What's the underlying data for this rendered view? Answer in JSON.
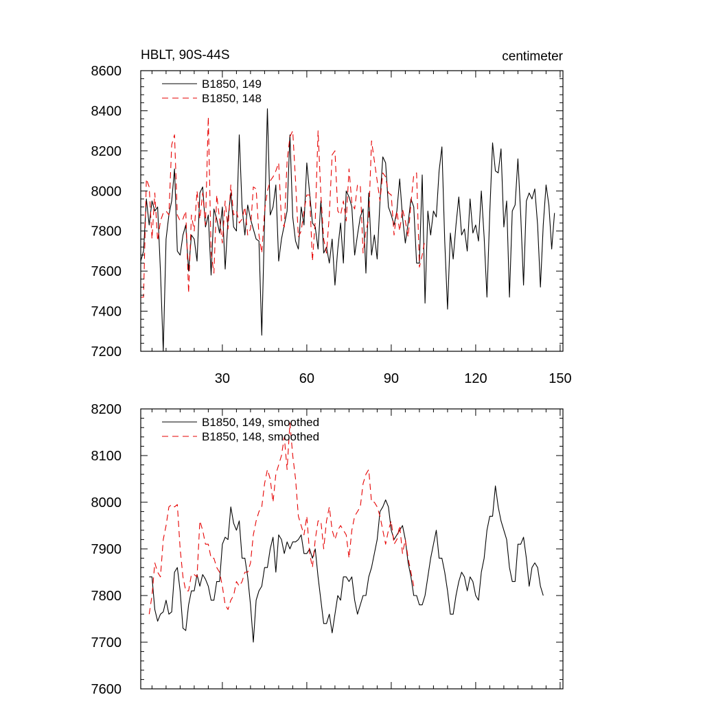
{
  "chart_data": [
    {
      "type": "line",
      "title_left": "HBLT, 90S-44S",
      "title_right": "centimeter",
      "xlim": [
        1,
        151
      ],
      "ylim": [
        7200,
        8600
      ],
      "xticks": [
        30,
        60,
        90,
        120,
        150
      ],
      "yticks": [
        7200,
        7400,
        7600,
        7800,
        8000,
        8200,
        8400,
        8600
      ],
      "show_x_tick_labels": true,
      "x_start": 1,
      "series": [
        {
          "name": "B1850, 149",
          "color": "#000000",
          "dash": "",
          "values": [
            7650,
            7700,
            7960,
            7830,
            7950,
            7900,
            7920,
            7600,
            7200,
            7760,
            7880,
            7950,
            8110,
            7700,
            7680,
            7780,
            7830,
            7600,
            7780,
            7760,
            7650,
            7990,
            8020,
            7820,
            7880,
            7580,
            7910,
            7860,
            7790,
            7920,
            7610,
            7860,
            7990,
            7820,
            7800,
            8280,
            7920,
            7780,
            7930,
            7860,
            7810,
            7760,
            7750,
            7280,
            7850,
            8410,
            7880,
            7920,
            8030,
            7650,
            7760,
            7830,
            7900,
            8280,
            7870,
            7750,
            7710,
            7920,
            7830,
            8140,
            7990,
            7840,
            7820,
            7710,
            7950,
            7690,
            7720,
            7640,
            7760,
            7530,
            7710,
            7840,
            7640,
            8000,
            7970,
            7920,
            7680,
            7780,
            7870,
            7910,
            7590,
            7990,
            7680,
            7780,
            7660,
            7950,
            8170,
            8140,
            7920,
            7880,
            7830,
            7900,
            8060,
            7870,
            7740,
            7840,
            7960,
            7920,
            7640,
            7640,
            8080,
            7440,
            7900,
            7780,
            7900,
            7870,
            8100,
            8220,
            7750,
            7410,
            7790,
            7660,
            7830,
            7970,
            7780,
            7810,
            7700,
            7960,
            7790,
            7830,
            7750,
            8000,
            7770,
            7470,
            7890,
            8240,
            8100,
            8090,
            8210,
            7820,
            7950,
            7470,
            7900,
            7930,
            8160,
            7880,
            7530,
            7950,
            7990,
            7960,
            8010,
            7830,
            7520,
            7830,
            8030,
            7930,
            7710,
            7890
          ]
        },
        {
          "name": "B1850, 148",
          "color": "#e60000",
          "dash": "9,6",
          "values": [
            7470,
            7470,
            8060,
            8020,
            7760,
            7990,
            7750,
            7850,
            7890,
            7900,
            7880,
            8230,
            8280,
            7880,
            7850,
            7860,
            7900,
            7490,
            7880,
            7800,
            8000,
            7860,
            7990,
            7830,
            8370,
            7690,
            7590,
            7980,
            7860,
            7740,
            7950,
            7810,
            8030,
            7880,
            7900,
            7840,
            7860,
            7920,
            7780,
            7810,
            8020,
            8010,
            7780,
            7690,
            7900,
            8000,
            8050,
            8070,
            8100,
            8140,
            7850,
            7820,
            8150,
            8270,
            8300,
            8050,
            7770,
            7800,
            7900,
            7980,
            7980,
            7650,
            7850,
            8300,
            7980,
            7760,
            7690,
            7880,
            8180,
            8200,
            7900,
            7880,
            7950,
            7850,
            8110,
            7940,
            7910,
            8030,
            8030,
            7690,
            7800,
            7860,
            8250,
            8150,
            8050,
            7950,
            8090,
            8070,
            7990,
            7980,
            7780,
            7900,
            7800,
            7910,
            7850,
            7770,
            7940,
            8080,
            8090,
            7620,
            7680,
            7760
          ]
        }
      ]
    },
    {
      "type": "line",
      "xlim": [
        1,
        151
      ],
      "ylim": [
        7600,
        8200
      ],
      "xticks": [
        30,
        60,
        90,
        120,
        150
      ],
      "yticks": [
        7600,
        7700,
        7800,
        7900,
        8000,
        8100,
        8200
      ],
      "show_x_tick_labels": false,
      "x_start": 4,
      "series": [
        {
          "name": "B1850, 149, smoothed",
          "color": "#000000",
          "dash": "",
          "values": [
            7840,
            7840,
            7770,
            7745,
            7760,
            7765,
            7790,
            7760,
            7765,
            7850,
            7860,
            7810,
            7730,
            7725,
            7780,
            7810,
            7810,
            7845,
            7820,
            7845,
            7835,
            7820,
            7790,
            7790,
            7830,
            7830,
            7910,
            7925,
            7920,
            7990,
            7955,
            7940,
            7960,
            7880,
            7880,
            7840,
            7780,
            7700,
            7790,
            7810,
            7820,
            7860,
            7860,
            7900,
            7925,
            7850,
            7930,
            7920,
            7890,
            7915,
            7900,
            7915,
            7915,
            7920,
            7930,
            7890,
            7890,
            7900,
            7880,
            7900,
            7840,
            7790,
            7740,
            7740,
            7760,
            7720,
            7760,
            7800,
            7790,
            7840,
            7840,
            7830,
            7840,
            7790,
            7760,
            7780,
            7800,
            7800,
            7840,
            7860,
            7890,
            7920,
            7980,
            7990,
            8005,
            7990,
            7940,
            7920,
            7930,
            7940,
            7950,
            7920,
            7870,
            7840,
            7800,
            7800,
            7780,
            7780,
            7800,
            7840,
            7880,
            7910,
            7940,
            7880,
            7880,
            7850,
            7810,
            7760,
            7760,
            7800,
            7830,
            7850,
            7840,
            7810,
            7840,
            7830,
            7800,
            7790,
            7850,
            7880,
            7940,
            7970,
            7970,
            8035,
            7990,
            7960,
            7940,
            7920,
            7860,
            7830,
            7830,
            7910,
            7910,
            7925,
            7880,
            7820,
            7860,
            7870,
            7860,
            7820,
            7800
          ]
        },
        {
          "name": "B1850, 148, smoothed",
          "color": "#e60000",
          "dash": "9,6",
          "values": [
            7760,
            7800,
            7870,
            7850,
            7840,
            7920,
            7950,
            7990,
            7995,
            7990,
            7995,
            7900,
            7840,
            7810,
            7810,
            7845,
            7845,
            7840,
            7960,
            7940,
            7910,
            7910,
            7880,
            7880,
            7860,
            7850,
            7820,
            7780,
            7770,
            7790,
            7800,
            7830,
            7820,
            7830,
            7850,
            7850,
            7870,
            7930,
            7960,
            7980,
            7990,
            8040,
            8070,
            8050,
            8000,
            8060,
            8080,
            8100,
            8140,
            8070,
            8170,
            8100,
            8050,
            7970,
            7950,
            7930,
            7970,
            7890,
            7860,
            7920,
            7960,
            7960,
            7900,
            7960,
            7990,
            7940,
            7920,
            7940,
            7950,
            7940,
            7930,
            7880,
            7940,
            7970,
            7980,
            7990,
            8040,
            8060,
            8070,
            8000,
            8000,
            7990,
            7970,
            7940,
            7910,
            7940,
            7960,
            7910,
            7920,
            7950,
            7890,
            7920,
            7880,
            7850,
            7820
          ]
        }
      ]
    }
  ]
}
